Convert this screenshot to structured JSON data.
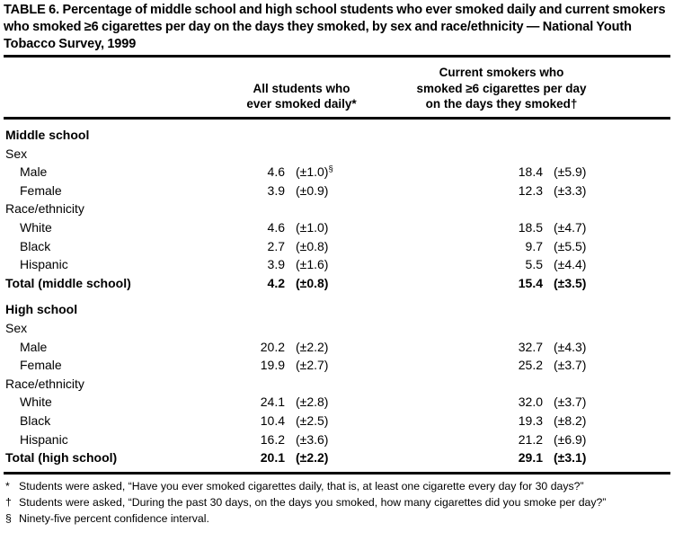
{
  "table": {
    "title": "TABLE 6. Percentage of middle school and high school students who ever smoked daily and current smokers who smoked ≥6 cigarettes per day on the days they smoked, by sex and race/ethnicity — National Youth Tobacco Survey, 1999",
    "col_group_1": "All students who\never smoked daily*",
    "col_group_2": "Current smokers who\nsmoked ≥6 cigarettes per day\non the days they smoked†"
  },
  "chart_data": {
    "type": "table",
    "columns": [
      "Group",
      "All students who ever smoked daily (%)",
      "95% CI",
      "Current smokers who smoked ≥6 cigarettes per day on the days they smoked (%)",
      "95% CI"
    ],
    "rows": [
      [
        "Middle school — Male",
        4.6,
        "±1.0",
        18.4,
        "±5.9"
      ],
      [
        "Middle school — Female",
        3.9,
        "±0.9",
        12.3,
        "±3.3"
      ],
      [
        "Middle school — White",
        4.6,
        "±1.0",
        18.5,
        "±4.7"
      ],
      [
        "Middle school — Black",
        2.7,
        "±0.8",
        9.7,
        "±5.5"
      ],
      [
        "Middle school — Hispanic",
        3.9,
        "±1.6",
        5.5,
        "±4.4"
      ],
      [
        "Total (middle school)",
        4.2,
        "±0.8",
        15.4,
        "±3.5"
      ],
      [
        "High school — Male",
        20.2,
        "±2.2",
        32.7,
        "±4.3"
      ],
      [
        "High school — Female",
        19.9,
        "±2.7",
        25.2,
        "±3.7"
      ],
      [
        "High school — White",
        24.1,
        "±2.8",
        32.0,
        "±3.7"
      ],
      [
        "High school — Black",
        10.4,
        "±2.5",
        19.3,
        "±8.2"
      ],
      [
        "High school — Hispanic",
        16.2,
        "±3.6",
        21.2,
        "±6.9"
      ],
      [
        "Total (high school)",
        20.1,
        "±2.2",
        29.1,
        "±3.1"
      ]
    ]
  },
  "sections": [
    {
      "name": "Middle school",
      "groups": [
        {
          "label": "Sex",
          "rows": [
            {
              "label": "Male",
              "v1": "4.6",
              "ci1": "(±1.0)",
              "sup1": "§",
              "v2": "18.4",
              "ci2": "(±5.9)"
            },
            {
              "label": "Female",
              "v1": "3.9",
              "ci1": "(±0.9)",
              "v2": "12.3",
              "ci2": "(±3.3)"
            }
          ]
        },
        {
          "label": "Race/ethnicity",
          "rows": [
            {
              "label": "White",
              "v1": "4.6",
              "ci1": "(±1.0)",
              "v2": "18.5",
              "ci2": "(±4.7)"
            },
            {
              "label": "Black",
              "v1": "2.7",
              "ci1": "(±0.8)",
              "v2": "9.7",
              "ci2": "(±5.5)"
            },
            {
              "label": "Hispanic",
              "v1": "3.9",
              "ci1": "(±1.6)",
              "v2": "5.5",
              "ci2": "(±4.4)"
            }
          ]
        }
      ],
      "total": {
        "label": "Total (middle school)",
        "v1": "4.2",
        "ci1": "(±0.8)",
        "v2": "15.4",
        "ci2": "(±3.5)"
      }
    },
    {
      "name": "High school",
      "groups": [
        {
          "label": "Sex",
          "rows": [
            {
              "label": "Male",
              "v1": "20.2",
              "ci1": "(±2.2)",
              "v2": "32.7",
              "ci2": "(±4.3)"
            },
            {
              "label": "Female",
              "v1": "19.9",
              "ci1": "(±2.7)",
              "v2": "25.2",
              "ci2": "(±3.7)"
            }
          ]
        },
        {
          "label": "Race/ethnicity",
          "rows": [
            {
              "label": "White",
              "v1": "24.1",
              "ci1": "(±2.8)",
              "v2": "32.0",
              "ci2": "(±3.7)"
            },
            {
              "label": "Black",
              "v1": "10.4",
              "ci1": "(±2.5)",
              "v2": "19.3",
              "ci2": "(±8.2)"
            },
            {
              "label": "Hispanic",
              "v1": "16.2",
              "ci1": "(±3.6)",
              "v2": "21.2",
              "ci2": "(±6.9)"
            }
          ]
        }
      ],
      "total": {
        "label": "Total (high school)",
        "v1": "20.1",
        "ci1": "(±2.2)",
        "v2": "29.1",
        "ci2": "(±3.1)"
      }
    }
  ],
  "footnotes": [
    {
      "marker": "*",
      "text": "Students were asked, “Have you ever smoked cigarettes daily, that is, at least one cigarette every day for 30 days?”"
    },
    {
      "marker": "†",
      "text": "Students were asked, “During the past 30 days, on the days you smoked, how many cigarettes did you smoke per day?”"
    },
    {
      "marker": "§",
      "text": "Ninety-five percent confidence interval."
    }
  ]
}
